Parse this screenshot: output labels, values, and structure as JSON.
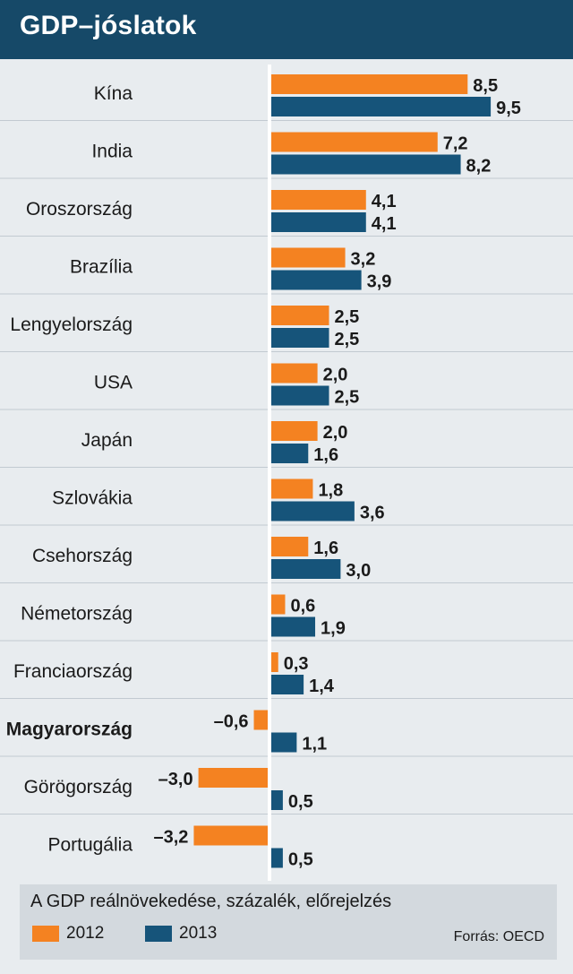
{
  "title": "GDP–jóslatok",
  "colors": {
    "s2012": "#f48221",
    "s2013": "#16547a",
    "header_bg": "#164968",
    "gridline": "#c2cad1",
    "axis": "#ffffff"
  },
  "chart_data": {
    "type": "bar",
    "orientation": "horizontal",
    "categories": [
      "Kína",
      "India",
      "Oroszország",
      "Brazília",
      "Lengyelország",
      "USA",
      "Japán",
      "Szlovákia",
      "Csehország",
      "Németország",
      "Franciaország",
      "Magyarország",
      "Görögország",
      "Portugália"
    ],
    "highlight_category": "Magyarország",
    "series": [
      {
        "name": "2012",
        "color": "#f48221",
        "values": [
          8.5,
          7.2,
          4.1,
          3.2,
          2.5,
          2.0,
          2.0,
          1.8,
          1.6,
          0.6,
          0.3,
          -0.6,
          -3.0,
          -3.2
        ],
        "labels": [
          "8,5",
          "7,2",
          "4,1",
          "3,2",
          "2,5",
          "2,0",
          "2,0",
          "1,8",
          "1,6",
          "0,6",
          "0,3",
          "–0,6",
          "–3,0",
          "–3,2"
        ]
      },
      {
        "name": "2013",
        "color": "#16547a",
        "values": [
          9.5,
          8.2,
          4.1,
          3.9,
          2.5,
          2.5,
          1.6,
          3.6,
          3.0,
          1.9,
          1.4,
          1.1,
          0.5,
          0.5
        ],
        "labels": [
          "9,5",
          "8,2",
          "4,1",
          "3,9",
          "2,5",
          "2,5",
          "1,6",
          "3,6",
          "3,0",
          "1,9",
          "1,4",
          "1,1",
          "0,5",
          "0,5"
        ]
      }
    ],
    "xlim": [
      -3.2,
      9.5
    ],
    "grid": false
  },
  "footer": {
    "note": "A GDP reálnövekedése, százalék, előrejelzés",
    "legend": [
      {
        "label": "2012",
        "color": "#f48221"
      },
      {
        "label": "2013",
        "color": "#16547a"
      }
    ],
    "source": "Forrás: OECD"
  }
}
